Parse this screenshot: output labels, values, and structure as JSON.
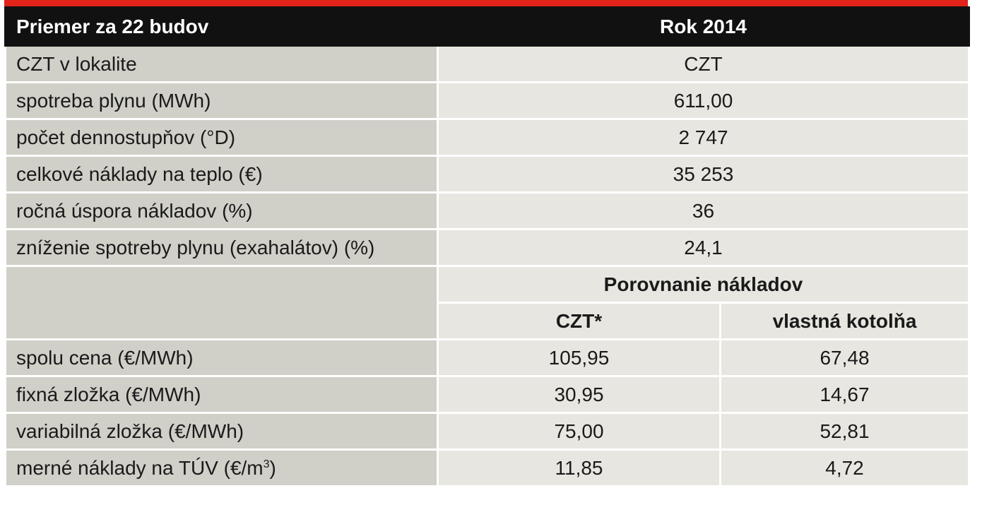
{
  "header": {
    "left": "Priemer za 22 budov",
    "right": "Rok 2014"
  },
  "rows_single": [
    {
      "label": "CZT v lokalite",
      "value": "CZT"
    },
    {
      "label": "spotreba plynu (MWh)",
      "value": "611,00"
    },
    {
      "label": "počet dennostupňov (°D)",
      "value": "2 747"
    },
    {
      "label": "celkové náklady na teplo (€)",
      "value": "35 253"
    },
    {
      "label": "ročná úspora nákladov (%)",
      "value": "36"
    },
    {
      "label": "zníženie spotreby plynu (exahalátov) (%)",
      "value": "24,1"
    }
  ],
  "comparison": {
    "title": "Porovnanie nákladov",
    "col1": "CZT*",
    "col2": "vlastná kotolňa"
  },
  "rows_double": [
    {
      "label": "spolu cena (€/MWh)",
      "v1": "105,95",
      "v2": "67,48"
    },
    {
      "label": "fixná zložka (€/MWh)",
      "v1": "30,95",
      "v2": "14,67"
    },
    {
      "label": "variabilná zložka (€/MWh)",
      "v1": "75,00",
      "v2": "52,81"
    },
    {
      "label_main": "merné náklady na TÚV (€/m",
      "label_sup": "3",
      "label_end": ")",
      "v1": "11,85",
      "v2": "4,72"
    }
  ],
  "colors": {
    "accent_red": "#e2231a",
    "header_bg": "#111111",
    "label_bg": "#d0cfc8",
    "value_bg": "#e7e6e0"
  }
}
